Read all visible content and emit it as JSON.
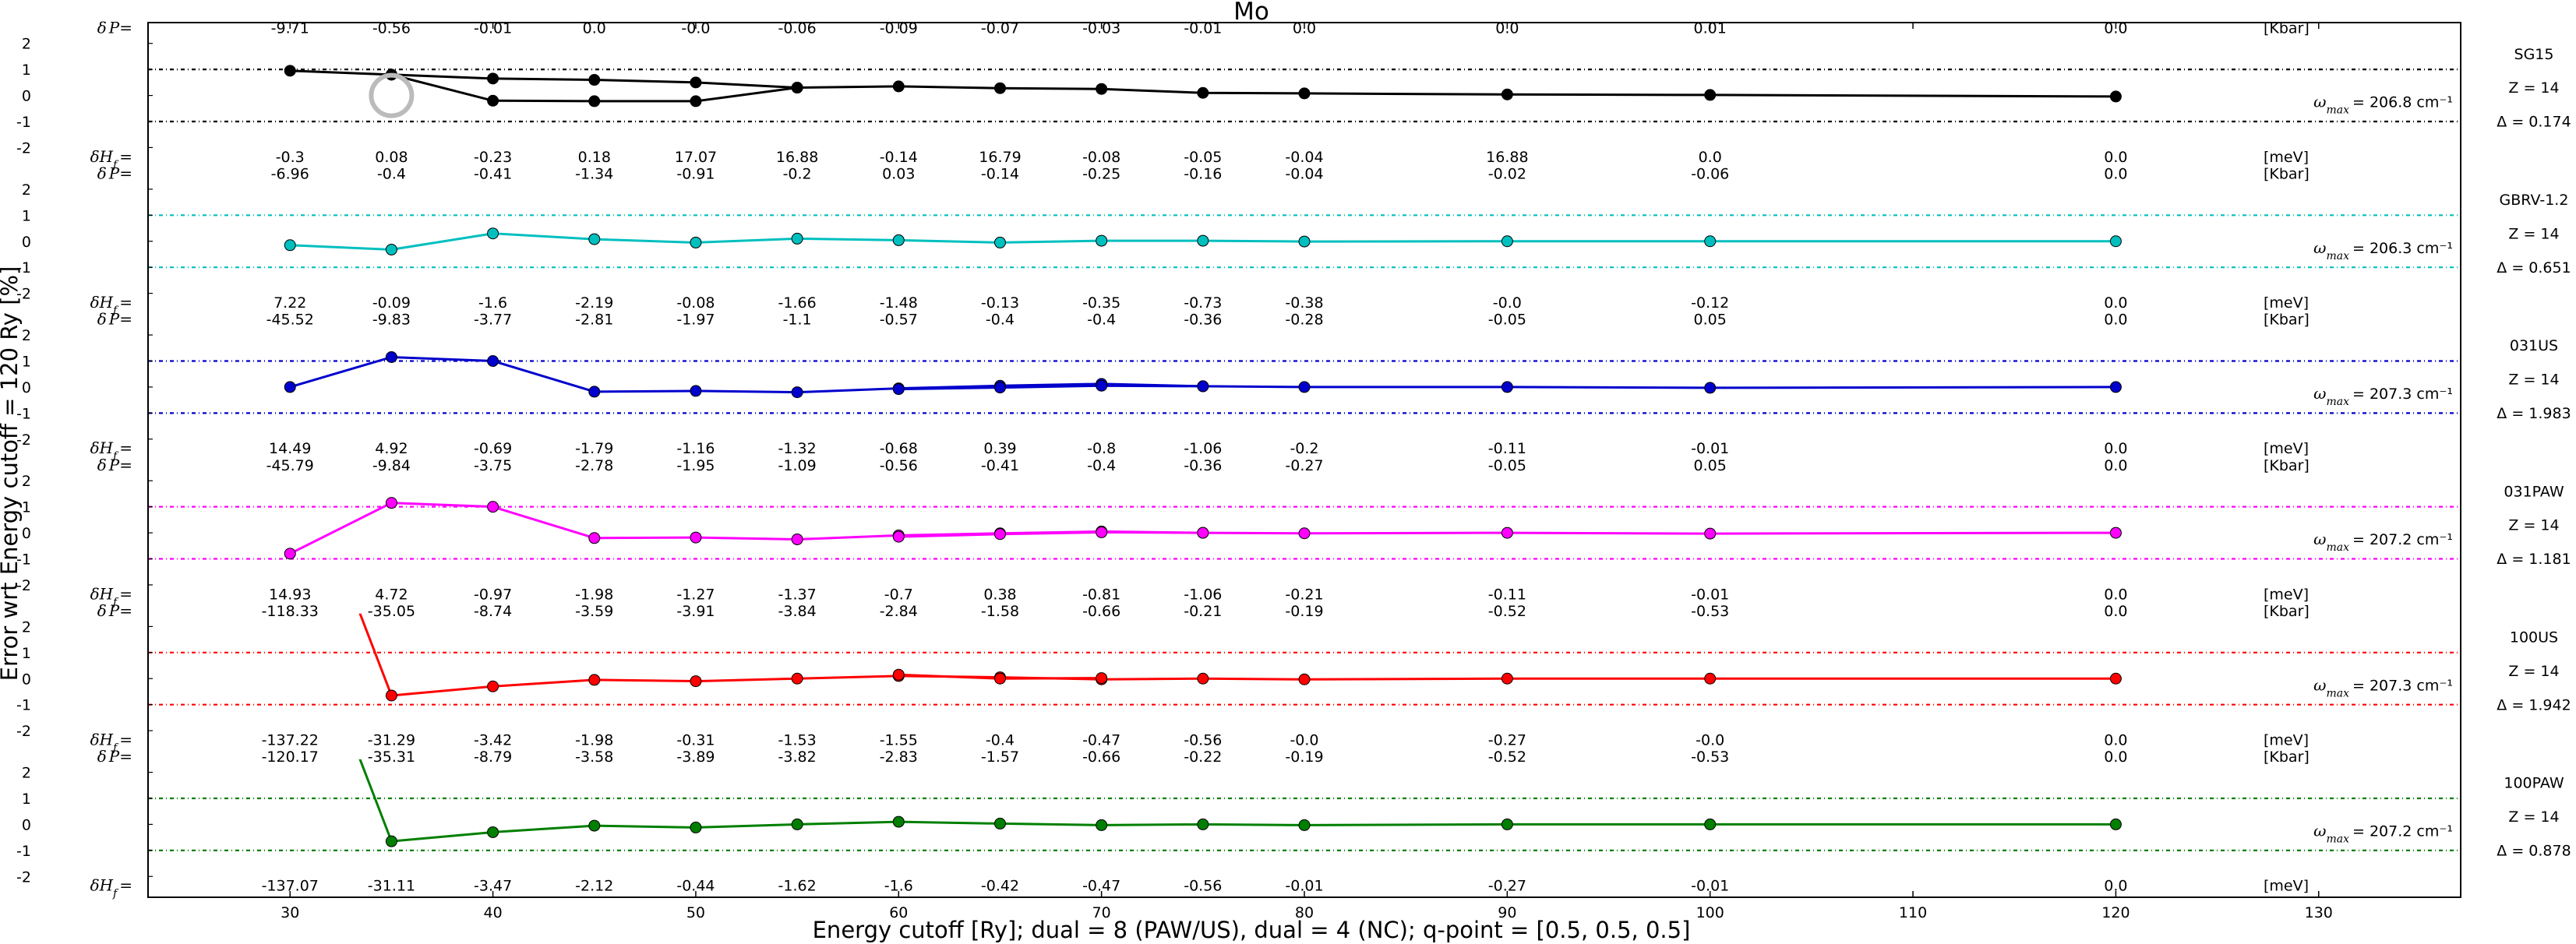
{
  "chart_data": {
    "type": "line",
    "title": "Mo",
    "xlabel": "Energy cutoff [Ry]; dual = 8 (PAW/US), dual = 4 (NC); q-point = [0.5, 0.5, 0.5]",
    "ylabel": "Error wrt Energy cutoff = 120 Ry [%]",
    "xlim": [
      23,
      137
    ],
    "xticks": [
      "30",
      "40",
      "50",
      "60",
      "70",
      "80",
      "90",
      "100",
      "110",
      "120",
      "130"
    ],
    "panel_yticks": [
      "2",
      "1",
      "0",
      "-1",
      "-2"
    ],
    "panel_ylim": [
      -2.5,
      2.5
    ],
    "threshold_lines": [
      1,
      -1
    ],
    "grid": false,
    "x_points": [
      30,
      35,
      40,
      45,
      50,
      55,
      60,
      65,
      70,
      75,
      80,
      90,
      100,
      120
    ],
    "dP_label": "δP=",
    "dH_label": "δH_f =",
    "dP_unit": "[Kbar]",
    "dH_unit": "[meV]",
    "omega_prefix": "ω_max = ",
    "omega_unit": "cm⁻¹",
    "panels": [
      {
        "name": "SG15",
        "color": "#000000",
        "z": "Z = 14",
        "delta": "Δ = 0.174",
        "omega": "206.8",
        "dP": [
          "-9.71",
          "-0.56",
          "-0.01",
          "0.0",
          "-0.0",
          "-0.06",
          "-0.09",
          "-0.07",
          "-0.03",
          "-0.01",
          "0.0",
          "0.0",
          "0.01",
          "0.0"
        ],
        "dH": [
          "-0.3",
          "0.08",
          "-0.23",
          "0.18",
          "17.07",
          "16.88",
          "-0.14",
          "16.79",
          "-0.08",
          "-0.05",
          "-0.04",
          "16.88",
          "0.0",
          "0.0"
        ],
        "lines": [
          {
            "x": [
              30,
              35,
              40,
              45,
              50,
              55,
              60,
              65,
              70,
              75,
              80,
              90,
              100,
              120
            ],
            "y": [
              0.95,
              0.8,
              0.65,
              0.6,
              0.5,
              0.3,
              0.35,
              0.28,
              0.25,
              0.1,
              0.08,
              0.04,
              0.02,
              -0.04
            ]
          },
          {
            "x": [
              35,
              40,
              45,
              50,
              55
            ],
            "y": [
              0.8,
              -0.2,
              -0.22,
              -0.22,
              0.3
            ]
          }
        ],
        "open_marker": {
          "x": 35,
          "y": 0.0
        }
      },
      {
        "name": "GBRV-1.2",
        "color": "#00bfbf",
        "z": "Z = 14",
        "delta": "Δ = 0.651",
        "omega": "206.3",
        "dP": [
          "-6.96",
          "-0.4",
          "-0.41",
          "-1.34",
          "-0.91",
          "-0.2",
          "0.03",
          "-0.14",
          "-0.25",
          "-0.16",
          "-0.04",
          "-0.02",
          "-0.06",
          "0.0"
        ],
        "dH": [
          "7.22",
          "-0.09",
          "-1.6",
          "-2.19",
          "-0.08",
          "-1.66",
          "-1.48",
          "-0.13",
          "-0.35",
          "-0.73",
          "-0.38",
          "-0.0",
          "-0.12",
          "0.0"
        ],
        "lines": [
          {
            "x": [
              30,
              35,
              40,
              45,
              50,
              55,
              60,
              65,
              70,
              75,
              80,
              90,
              100,
              120
            ],
            "y": [
              -0.15,
              -0.32,
              0.3,
              0.08,
              -0.05,
              0.1,
              0.04,
              -0.05,
              0.02,
              0.02,
              -0.01,
              0.0,
              0.0,
              0.0
            ]
          }
        ]
      },
      {
        "name": "031US",
        "color": "#0000cc",
        "z": "Z = 14",
        "delta": "Δ = 1.983",
        "omega": "207.3",
        "dP": [
          "-45.52",
          "-9.83",
          "-3.77",
          "-2.81",
          "-1.97",
          "-1.1",
          "-0.57",
          "-0.4",
          "-0.4",
          "-0.36",
          "-0.28",
          "-0.05",
          "0.05",
          "0.0"
        ],
        "dH": [
          "14.49",
          "4.92",
          "-0.69",
          "-1.79",
          "-1.16",
          "-1.32",
          "-0.68",
          "0.39",
          "-0.8",
          "-1.06",
          "-0.2",
          "-0.11",
          "-0.01",
          "0.0"
        ],
        "lines": [
          {
            "x": [
              30,
              35,
              40,
              45,
              50,
              55,
              60,
              65,
              70,
              75,
              80,
              90,
              100,
              120
            ],
            "y": [
              0.0,
              1.15,
              1.0,
              -0.18,
              -0.15,
              -0.2,
              -0.05,
              0.05,
              0.12,
              0.03,
              0.0,
              0.0,
              -0.03,
              0.0
            ]
          },
          {
            "x": [
              60,
              65,
              70,
              75
            ],
            "y": [
              -0.08,
              -0.02,
              0.05,
              0.03
            ]
          }
        ]
      },
      {
        "name": "031PAW",
        "color": "#ff00ff",
        "z": "Z = 14",
        "delta": "Δ = 1.181",
        "omega": "207.2",
        "dP": [
          "-45.79",
          "-9.84",
          "-3.75",
          "-2.78",
          "-1.95",
          "-1.09",
          "-0.56",
          "-0.41",
          "-0.4",
          "-0.36",
          "-0.27",
          "-0.05",
          "0.05",
          "0.0"
        ],
        "dH": [
          "14.93",
          "4.72",
          "-0.97",
          "-1.98",
          "-1.27",
          "-1.37",
          "-0.7",
          "0.38",
          "-0.81",
          "-1.06",
          "-0.21",
          "-0.11",
          "-0.01",
          "0.0"
        ],
        "lines": [
          {
            "x": [
              30,
              35,
              40,
              45,
              50,
              55,
              60,
              65,
              70,
              75,
              80,
              90,
              100,
              120
            ],
            "y": [
              -0.8,
              1.15,
              1.0,
              -0.2,
              -0.18,
              -0.25,
              -0.1,
              -0.02,
              0.05,
              0.0,
              -0.02,
              0.0,
              -0.03,
              0.0
            ]
          },
          {
            "x": [
              60,
              65,
              70,
              75
            ],
            "y": [
              -0.15,
              -0.05,
              0.02,
              0.0
            ]
          }
        ]
      },
      {
        "name": "100US",
        "color": "#ff0000",
        "z": "Z = 14",
        "delta": "Δ = 1.942",
        "omega": "207.3",
        "dP": [
          "-118.33",
          "-35.05",
          "-8.74",
          "-3.59",
          "-3.91",
          "-3.84",
          "-2.84",
          "-1.58",
          "-0.66",
          "-0.21",
          "-0.19",
          "-0.52",
          "-0.53",
          "0.0"
        ],
        "dH": [
          "-137.22",
          "-31.29",
          "-3.42",
          "-1.98",
          "-0.31",
          "-1.53",
          "-1.55",
          "-0.4",
          "-0.47",
          "-0.56",
          "-0.0",
          "-0.27",
          "-0.0",
          "0.0"
        ],
        "lines": [
          {
            "x": [
              30,
              35,
              40,
              45,
              50,
              55,
              60,
              65,
              70,
              75,
              80,
              90,
              100,
              120
            ],
            "y": [
              9.5,
              -0.65,
              -0.3,
              -0.05,
              -0.1,
              0.0,
              0.1,
              0.05,
              -0.03,
              0.0,
              -0.03,
              0.0,
              0.0,
              0.0
            ]
          },
          {
            "x": [
              60,
              65,
              70
            ],
            "y": [
              0.15,
              0.0,
              0.02
            ]
          }
        ]
      },
      {
        "name": "100PAW",
        "color": "#007f00",
        "z": "Z = 14",
        "delta": "Δ = 0.878",
        "omega": "207.2",
        "dP": [
          "-120.17",
          "-35.31",
          "-8.79",
          "-3.58",
          "-3.89",
          "-3.82",
          "-2.83",
          "-1.57",
          "-0.66",
          "-0.22",
          "-0.19",
          "-0.52",
          "-0.53",
          "0.0"
        ],
        "dH": [
          "-137.07",
          "-31.11",
          "-3.47",
          "-2.12",
          "-0.44",
          "-1.62",
          "-1.6",
          "-0.42",
          "-0.47",
          "-0.56",
          "-0.01",
          "-0.27",
          "-0.01",
          "0.0"
        ],
        "lines": [
          {
            "x": [
              30,
              35,
              40,
              45,
              50,
              55,
              60,
              65,
              70,
              75,
              80,
              90,
              100,
              120
            ],
            "y": [
              9.5,
              -0.65,
              -0.3,
              -0.05,
              -0.12,
              0.0,
              0.1,
              0.03,
              -0.03,
              0.0,
              -0.03,
              0.0,
              0.0,
              0.0
            ]
          }
        ]
      }
    ]
  }
}
